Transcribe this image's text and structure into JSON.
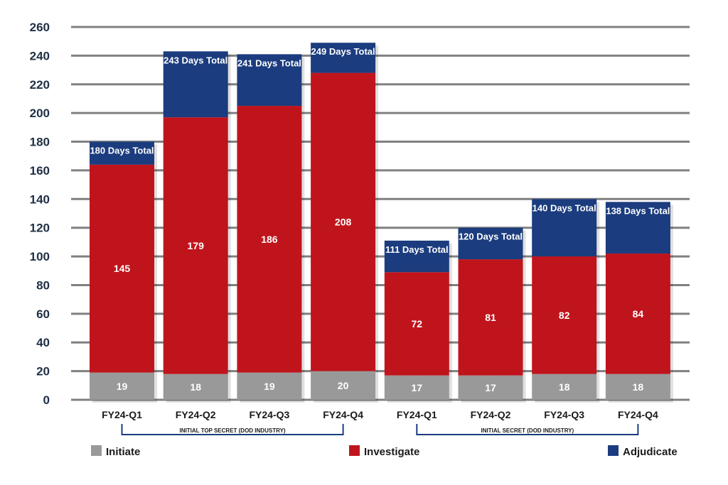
{
  "chart_data": {
    "type": "bar",
    "stacked": true,
    "title": "",
    "xlabel": "",
    "ylabel": "",
    "ylim": [
      0,
      260
    ],
    "yticks": [
      0,
      20,
      40,
      60,
      80,
      100,
      120,
      140,
      160,
      180,
      200,
      220,
      240,
      260
    ],
    "grid": true,
    "categories": [
      "FY24-Q1",
      "FY24-Q2",
      "FY24-Q3",
      "FY24-Q4",
      "FY24-Q1",
      "FY24-Q2",
      "FY24-Q3",
      "FY24-Q4"
    ],
    "groups": [
      {
        "label": "INITIAL TOP SECRET (DOD INDUSTRY)",
        "categories": [
          0,
          1,
          2,
          3
        ]
      },
      {
        "label": "INITIAL SECRET (DOD INDUSTRY)",
        "categories": [
          4,
          5,
          6,
          7
        ]
      }
    ],
    "series": [
      {
        "name": "Initiate",
        "color": "#999999",
        "values": [
          19,
          18,
          19,
          20,
          17,
          17,
          18,
          18
        ]
      },
      {
        "name": "Investigate",
        "color": "#c0141c",
        "values": [
          145,
          179,
          186,
          208,
          72,
          81,
          82,
          84
        ]
      },
      {
        "name": "Adjudicate",
        "color": "#1b3c7e",
        "values": [
          16,
          46,
          36,
          21,
          22,
          22,
          40,
          36
        ]
      }
    ],
    "total_labels": [
      "180 Days Total",
      "243 Days Total",
      "241 Days Total",
      "249 Days Total",
      "111 Days Total",
      "120 Days Total",
      "140 Days Total",
      "138 Days Total"
    ],
    "legend_placement": "bottom"
  }
}
